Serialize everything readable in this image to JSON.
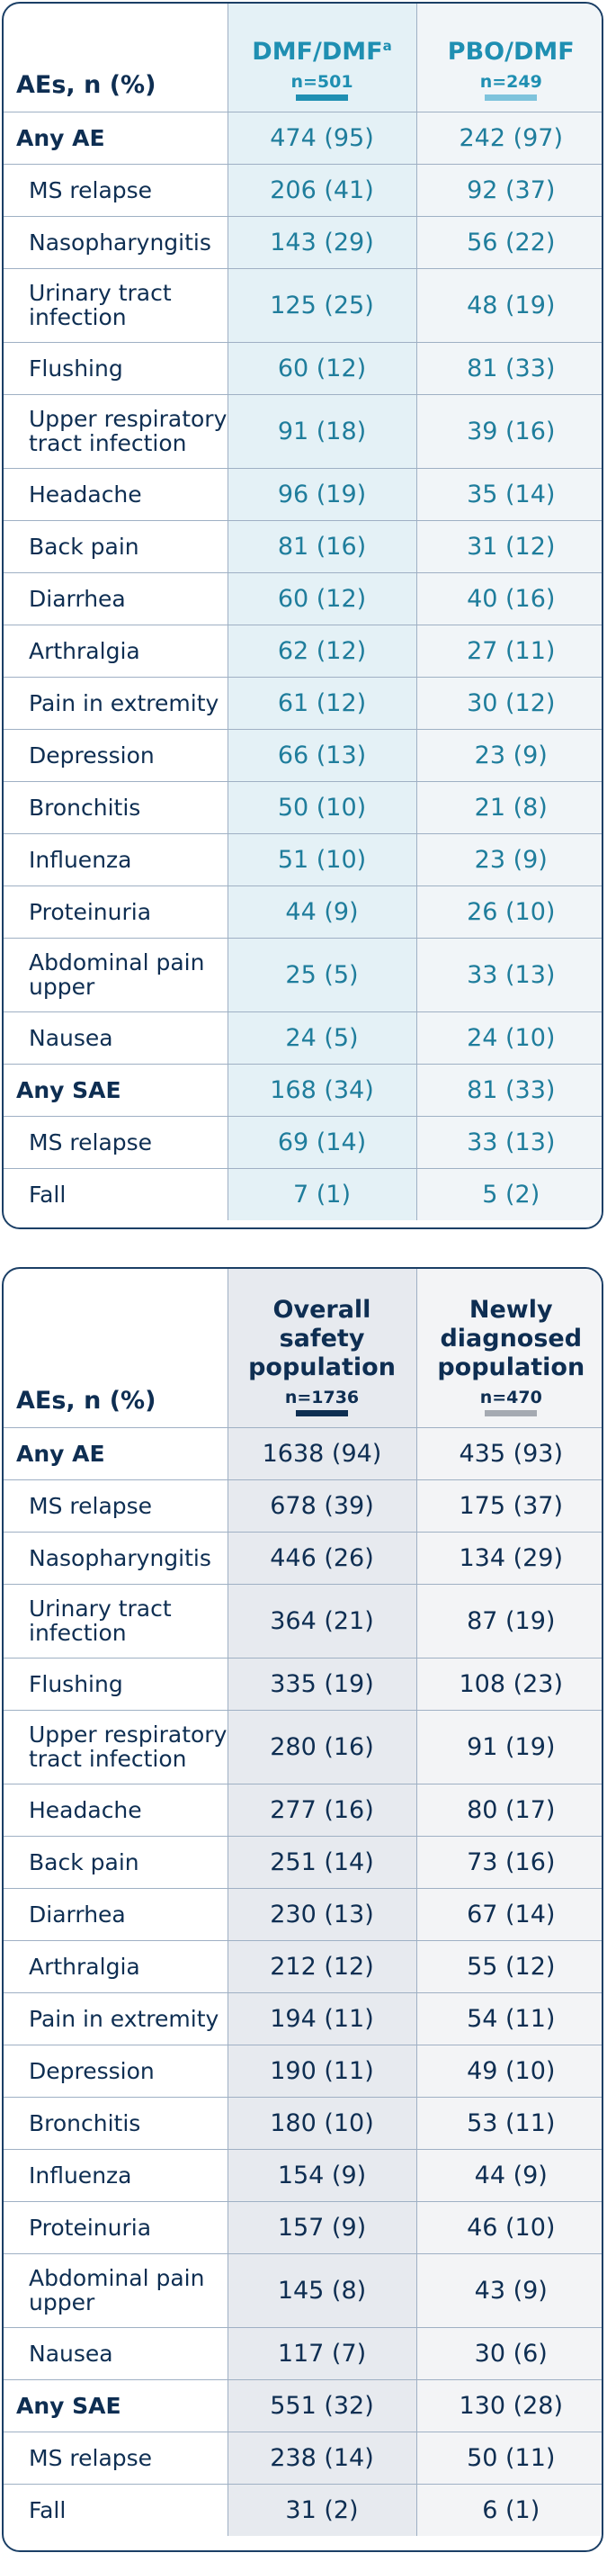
{
  "table1": {
    "row_header": "AEs, n (%)",
    "col1": {
      "title": "DMF/DMF",
      "sup": "a",
      "n": "n=501",
      "bar_color": "#1f8fb2"
    },
    "col2": {
      "title": "PBO/DMF",
      "n": "n=249",
      "bar_color": "#7ec3dc"
    },
    "rows": [
      {
        "label": "Any AE",
        "v1": "474 (95)",
        "v2": "242 (97)"
      },
      {
        "label": "MS relapse",
        "v1": "206 (41)",
        "v2": "92 (37)"
      },
      {
        "label": "Nasopharyngitis",
        "v1": "143 (29)",
        "v2": "56 (22)"
      },
      {
        "label": "Urinary tract infection",
        "v1": "125 (25)",
        "v2": "48 (19)"
      },
      {
        "label": "Flushing",
        "v1": "60 (12)",
        "v2": "81 (33)"
      },
      {
        "label": "Upper respiratory tract infection",
        "v1": "91 (18)",
        "v2": "39 (16)"
      },
      {
        "label": "Headache",
        "v1": "96 (19)",
        "v2": "35 (14)"
      },
      {
        "label": "Back pain",
        "v1": "81 (16)",
        "v2": "31 (12)"
      },
      {
        "label": "Diarrhea",
        "v1": "60 (12)",
        "v2": "40 (16)"
      },
      {
        "label": "Arthralgia",
        "v1": "62 (12)",
        "v2": "27 (11)"
      },
      {
        "label": "Pain in extremity",
        "v1": "61 (12)",
        "v2": "30 (12)"
      },
      {
        "label": "Depression",
        "v1": "66 (13)",
        "v2": "23 (9)"
      },
      {
        "label": "Bronchitis",
        "v1": "50 (10)",
        "v2": "21 (8)"
      },
      {
        "label": "Influenza",
        "v1": "51 (10)",
        "v2": "23 (9)"
      },
      {
        "label": "Proteinuria",
        "v1": "44 (9)",
        "v2": "26 (10)"
      },
      {
        "label": "Abdominal pain upper",
        "v1": "25 (5)",
        "v2": "33 (13)"
      },
      {
        "label": "Nausea",
        "v1": "24 (5)",
        "v2": "24 (10)"
      },
      {
        "label": "Any SAE",
        "v1": "168 (34)",
        "v2": "81 (33)"
      },
      {
        "label": "MS relapse",
        "v1": "69 (14)",
        "v2": "33 (13)"
      },
      {
        "label": "Fall",
        "v1": "7 (1)",
        "v2": "5 (2)"
      }
    ]
  },
  "table2": {
    "row_header": "AEs, n (%)",
    "col1": {
      "title": "Overall safety population",
      "n": "n=1736",
      "bar_color": "#0e2e52"
    },
    "col2": {
      "title": "Newly diagnosed population",
      "n": "n=470",
      "bar_color": "#a5aab2"
    },
    "rows": [
      {
        "label": "Any AE",
        "v1": "1638 (94)",
        "v2": "435 (93)"
      },
      {
        "label": "MS relapse",
        "v1": "678 (39)",
        "v2": "175 (37)"
      },
      {
        "label": "Nasopharyngitis",
        "v1": "446 (26)",
        "v2": "134 (29)"
      },
      {
        "label": "Urinary tract infection",
        "v1": "364 (21)",
        "v2": "87 (19)"
      },
      {
        "label": "Flushing",
        "v1": "335 (19)",
        "v2": "108 (23)"
      },
      {
        "label": "Upper respiratory tract infection",
        "v1": "280 (16)",
        "v2": "91 (19)"
      },
      {
        "label": "Headache",
        "v1": "277 (16)",
        "v2": "80 (17)"
      },
      {
        "label": "Back pain",
        "v1": "251 (14)",
        "v2": "73 (16)"
      },
      {
        "label": "Diarrhea",
        "v1": "230 (13)",
        "v2": "67 (14)"
      },
      {
        "label": "Arthralgia",
        "v1": "212 (12)",
        "v2": "55 (12)"
      },
      {
        "label": "Pain in extremity",
        "v1": "194 (11)",
        "v2": "54 (11)"
      },
      {
        "label": "Depression",
        "v1": "190 (11)",
        "v2": "49 (10)"
      },
      {
        "label": "Bronchitis",
        "v1": "180 (10)",
        "v2": "53 (11)"
      },
      {
        "label": "Influenza",
        "v1": "154 (9)",
        "v2": "44 (9)"
      },
      {
        "label": "Proteinuria",
        "v1": "157 (9)",
        "v2": "46 (10)"
      },
      {
        "label": "Abdominal pain upper",
        "v1": "145 (8)",
        "v2": "43 (9)"
      },
      {
        "label": "Nausea",
        "v1": "117 (7)",
        "v2": "30 (6)"
      },
      {
        "label": "Any SAE",
        "v1": "551 (32)",
        "v2": "130 (28)"
      },
      {
        "label": "MS relapse",
        "v1": "238 (14)",
        "v2": "50 (11)"
      },
      {
        "label": "Fall",
        "v1": "31 (2)",
        "v2": "6 (1)"
      }
    ]
  }
}
